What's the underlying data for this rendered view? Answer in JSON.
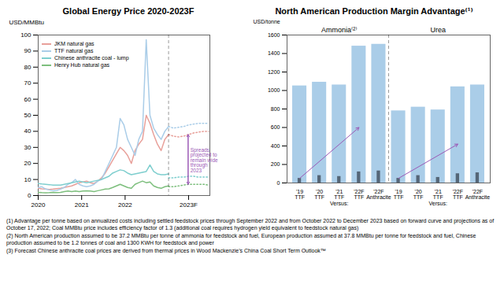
{
  "chart_data": [
    {
      "type": "line",
      "title": "Global Energy Price 2020-2023F",
      "ylabel": "USD/MMBtu",
      "xlim": [
        2020,
        2023.95
      ],
      "xticks": [
        2020,
        2021,
        2022,
        {
          "value": 2023.46,
          "label": "2023F"
        }
      ],
      "ylim": [
        0,
        100
      ],
      "yticks": [
        0,
        10,
        20,
        30,
        40,
        50,
        60,
        70,
        80,
        90,
        100
      ],
      "legend": "upper left",
      "series": [
        {
          "name": "JKM natural gas",
          "color": "#e8a09a",
          "line_style": "solid",
          "x": [
            2020,
            2020.085714,
            2020.171429,
            2020.257143,
            2020.342857,
            2020.428571,
            2020.514286,
            2020.6,
            2020.685714,
            2020.771429,
            2020.857143,
            2020.942857,
            2021.028571,
            2021.114286,
            2021.2,
            2021.285714,
            2021.371429,
            2021.457143,
            2021.542857,
            2021.628571,
            2021.714286,
            2021.8,
            2021.885714,
            2021.971429,
            2022.057143,
            2022.142857,
            2022.228571,
            2022.314286,
            2022.4,
            2022.485714,
            2022.571429,
            2022.657143,
            2022.742857,
            2022.828571,
            2022.914286,
            2023
          ],
          "values": [
            4.5,
            4.2,
            4.0,
            3.8,
            4.0,
            4.3,
            4.5,
            5.0,
            5.5,
            6.0,
            7.0,
            8.0,
            8.5,
            9.0,
            8.0,
            7.5,
            9.0,
            11.0,
            14.0,
            18.0,
            22.0,
            26.0,
            30.0,
            28.0,
            25.0,
            20.0,
            28.0,
            32.0,
            35.0,
            50.0,
            45.0,
            38.0,
            32.0,
            28.0,
            35.0,
            38.0
          ]
        },
        {
          "name": "JKM natural gas",
          "color": "#e8a09a",
          "line_style": "dotted",
          "x": [
            2023,
            2023.115,
            2023.23,
            2023.345,
            2023.46,
            2023.575,
            2023.69,
            2023.805,
            2023.92
          ],
          "values": [
            38.0,
            37.0,
            36.5,
            37.0,
            38.0,
            39.0,
            39.5,
            40.0,
            40.0
          ]
        },
        {
          "name": "TTF natural gas",
          "color": "#aacde8",
          "line_style": "solid",
          "x": [
            2020,
            2020.085714,
            2020.171429,
            2020.257143,
            2020.342857,
            2020.428571,
            2020.514286,
            2020.6,
            2020.685714,
            2020.771429,
            2020.857143,
            2020.942857,
            2021.028571,
            2021.114286,
            2021.2,
            2021.285714,
            2021.371429,
            2021.457143,
            2021.542857,
            2021.628571,
            2021.714286,
            2021.8,
            2021.885714,
            2021.971429,
            2022.057143,
            2022.142857,
            2022.228571,
            2022.314286,
            2022.4,
            2022.485714,
            2022.571429,
            2022.657143,
            2022.742857,
            2022.828571,
            2022.914286,
            2023
          ],
          "values": [
            5.0,
            5.5,
            4.0,
            3.5,
            3.0,
            3.2,
            4.0,
            5.0,
            7.0,
            8.0,
            10.0,
            7.0,
            6.0,
            5.5,
            6.0,
            7.0,
            9.0,
            10.0,
            15.0,
            20.0,
            25.0,
            30.0,
            48.0,
            44.0,
            35.0,
            30.0,
            25.0,
            35.0,
            40.0,
            97.0,
            50.0,
            42.0,
            38.0,
            35.0,
            40.0,
            43.0
          ]
        },
        {
          "name": "TTF natural gas",
          "color": "#aacde8",
          "line_style": "dotted",
          "x": [
            2023,
            2023.115,
            2023.23,
            2023.345,
            2023.46,
            2023.575,
            2023.69,
            2023.805,
            2023.92
          ],
          "values": [
            43.0,
            42.0,
            42.5,
            43.0,
            44.0,
            44.5,
            45.0,
            45.0,
            45.0
          ]
        },
        {
          "name": "Chinese anthracite coal - lump",
          "color": "#7ecece",
          "line_style": "solid",
          "x": [
            2020,
            2020.085714,
            2020.171429,
            2020.257143,
            2020.342857,
            2020.428571,
            2020.514286,
            2020.6,
            2020.685714,
            2020.771429,
            2020.857143,
            2020.942857,
            2021.028571,
            2021.114286,
            2021.2,
            2021.285714,
            2021.371429,
            2021.457143,
            2021.542857,
            2021.628571,
            2021.714286,
            2021.8,
            2021.885714,
            2021.971429,
            2022.057143,
            2022.142857,
            2022.228571,
            2022.314286,
            2022.4,
            2022.485714,
            2022.571429,
            2022.657143,
            2022.742857,
            2022.828571,
            2022.914286,
            2023
          ],
          "values": [
            7.5,
            7.2,
            7.0,
            6.8,
            6.5,
            6.5,
            6.5,
            7.0,
            7.5,
            8.0,
            8.5,
            9.0,
            8.5,
            8.0,
            8.5,
            9.0,
            9.5,
            10.0,
            11.0,
            12.0,
            14.0,
            15.0,
            16.0,
            15.5,
            14.0,
            13.0,
            13.5,
            14.0,
            14.5,
            15.0,
            19.0,
            15.0,
            13.5,
            13.0,
            13.0,
            13.5
          ]
        },
        {
          "name": "Chinese anthracite coal - lump",
          "color": "#7ecece",
          "line_style": "dotted",
          "x": [
            2023,
            2023.115,
            2023.23,
            2023.345,
            2023.46,
            2023.575,
            2023.69,
            2023.805,
            2023.92
          ],
          "values": [
            11.0,
            11.0,
            11.5,
            11.5,
            12.0,
            12.0,
            11.5,
            11.5,
            11.5
          ]
        },
        {
          "name": "Henry Hub natural gas",
          "color": "#7dbf7d",
          "line_style": "solid",
          "x": [
            2020,
            2020.085714,
            2020.171429,
            2020.257143,
            2020.342857,
            2020.428571,
            2020.514286,
            2020.6,
            2020.685714,
            2020.771429,
            2020.857143,
            2020.942857,
            2021.028571,
            2021.114286,
            2021.2,
            2021.285714,
            2021.371429,
            2021.457143,
            2021.542857,
            2021.628571,
            2021.714286,
            2021.8,
            2021.885714,
            2021.971429,
            2022.057143,
            2022.142857,
            2022.228571,
            2022.314286,
            2022.4,
            2022.485714,
            2022.571429,
            2022.657143,
            2022.742857,
            2022.828571,
            2022.914286,
            2023
          ],
          "values": [
            2.0,
            1.8,
            1.7,
            1.8,
            2.0,
            1.8,
            2.0,
            2.5,
            2.8,
            2.5,
            2.8,
            2.5,
            2.8,
            3.0,
            2.8,
            2.5,
            3.0,
            3.5,
            4.0,
            4.2,
            5.0,
            6.0,
            7.0,
            6.0,
            5.0,
            4.5,
            7.0,
            8.0,
            9.0,
            8.0,
            8.5,
            6.0,
            5.0,
            4.5,
            5.5,
            6.0
          ]
        },
        {
          "name": "Henry Hub natural gas",
          "color": "#7dbf7d",
          "line_style": "dotted",
          "x": [
            2023,
            2023.115,
            2023.23,
            2023.345,
            2023.46,
            2023.575,
            2023.69,
            2023.805,
            2023.92
          ],
          "values": [
            5.5,
            5.5,
            6.0,
            6.5,
            7.0,
            7.0,
            7.0,
            7.0,
            6.5
          ]
        }
      ],
      "annotations": [
        {
          "type": "vline",
          "x": 2023,
          "line_style": "dashed"
        },
        {
          "type": "arrow",
          "color": "#9b59b6",
          "x": 2023.45,
          "y": [
            7.0,
            38.0
          ],
          "text": "Spreads\nprojected to\nremain wide\nthrough\n2023",
          "text_x": 2023.5,
          "text_y": 22.0
        }
      ]
    },
    {
      "type": "bar",
      "title": "North American Production Margin Advantage⁽¹⁾",
      "ylabel": "USD/tonne",
      "ylim": [
        0,
        1600
      ],
      "yticks": [
        0,
        200,
        400,
        600,
        800,
        1000,
        1200,
        1400,
        1600
      ],
      "categories": [
        "'19\nTTF",
        "'20\nTTF",
        "'21\nTTF",
        "'22F\nTTF",
        "'22F\nAnthracite",
        "'19\nTTF",
        "'20\nTTF",
        "'21\nTTF",
        "'22F\nTTF",
        "'22F\nAnthracite"
      ],
      "groups": [
        "Ammonia⁽²⁾",
        "Ammonia⁽²⁾",
        "Ammonia⁽²⁾",
        "Ammonia⁽²⁾",
        "Ammonia⁽²⁾",
        "Urea",
        "Urea",
        "Urea",
        "Urea",
        "Urea"
      ],
      "series": [
        {
          "color": "#aacde8",
          "values": [
            1050,
            1090,
            1060,
            1480,
            1500,
            780,
            820,
            790,
            1040,
            1060
          ]
        },
        {
          "color": "#556677",
          "values": [
            50,
            80,
            70,
            120,
            130,
            50,
            80,
            60,
            100,
            110
          ]
        }
      ],
      "annotations": [
        {
          "type": "divider",
          "line_style": "dashed"
        },
        {
          "type": "text",
          "text": "Versus:",
          "group": "Ammonia⁽²⁾"
        },
        {
          "type": "text",
          "text": "Versus:",
          "group": "Urea"
        },
        {
          "type": "arrow",
          "color": "#9b59b6",
          "from_x": 0,
          "from_y": 50,
          "to_x": 3,
          "to_y": 600
        },
        {
          "type": "arrow",
          "color": "#9b59b6",
          "from_x": 5,
          "from_y": 50,
          "to_x": 8,
          "to_y": 420
        }
      ]
    }
  ],
  "footnotes": [
    "(1)  Advantage per tonne based on annualized costs including settled feedstock prices through September 2022 and from October 2022 to December 2023 based on forward curve and projections as of October 17, 2022; Coal MMBtu price includes efficiency factor of 1.3 (additional coal requires hydrogen yield equivalent to feedstock natural gas)",
    "(2)  North American production assumed to be 37.2 MMBtu per tonne of ammonia for feedstock and fuel, European production assumed at 37.8 MMBtu per tonne for feedstock and fuel, Chinese production assumed to be 1.2 tonnes of coal and 1300 KWH for feedstock and power",
    "(3)  Forecast Chinese anthracite coal prices are derived from thermal prices in Wood Mackenzie’s China Coal Short Term Outlook™"
  ]
}
